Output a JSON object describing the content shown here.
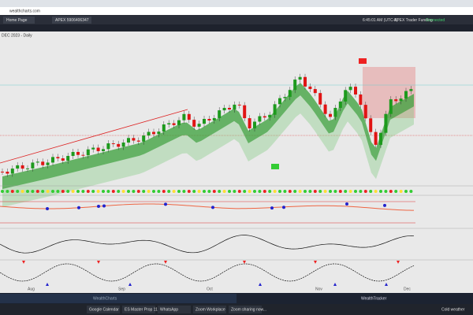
{
  "browser": {
    "url": "wealthcharts.com"
  },
  "app_header": {
    "tab": "Home Page",
    "account": "APEX 5906406347"
  },
  "toolbar": {
    "time": "6:45:01 AM (UTC-5)",
    "firm": "APEX Trader Funding",
    "status": "Connected"
  },
  "chart": {
    "title": "DEC 2023 - Daily",
    "months": [
      "Aug",
      "Sep",
      "Oct",
      "Nov",
      "Dec"
    ]
  },
  "footer": {
    "left": "WealthCharts",
    "right": "WealthTracker"
  },
  "taskbar": {
    "items": [
      "Google Calendar",
      "ES Master Prop 11...",
      "WhatsApp",
      "Zoom Workplace",
      "Zoom sharing now..."
    ],
    "weather": "Cold weather"
  }
}
